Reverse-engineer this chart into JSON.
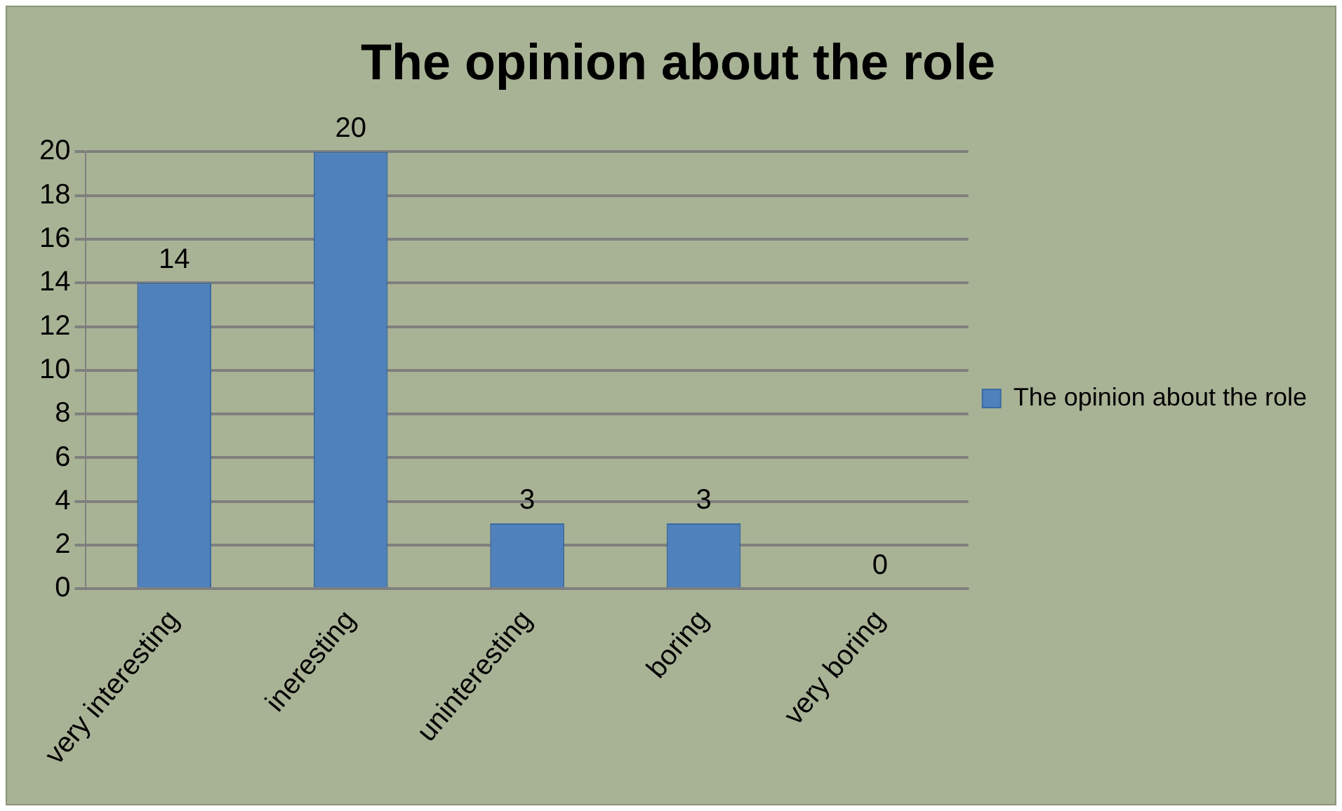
{
  "chart_data": {
    "type": "bar",
    "title": "The opinion about the role",
    "categories": [
      "very interesting",
      "ineresting",
      "uninteresting",
      "boring",
      "very boring"
    ],
    "series": [
      {
        "name": "The opinion about the role",
        "color": "#4f81bd",
        "values": [
          14,
          20,
          3,
          3,
          0
        ]
      }
    ],
    "ylim": [
      0,
      20
    ],
    "yticks": [
      0,
      2,
      4,
      6,
      8,
      10,
      12,
      14,
      16,
      18,
      20
    ],
    "grid": "y",
    "legend": "right",
    "data_labels": true
  }
}
